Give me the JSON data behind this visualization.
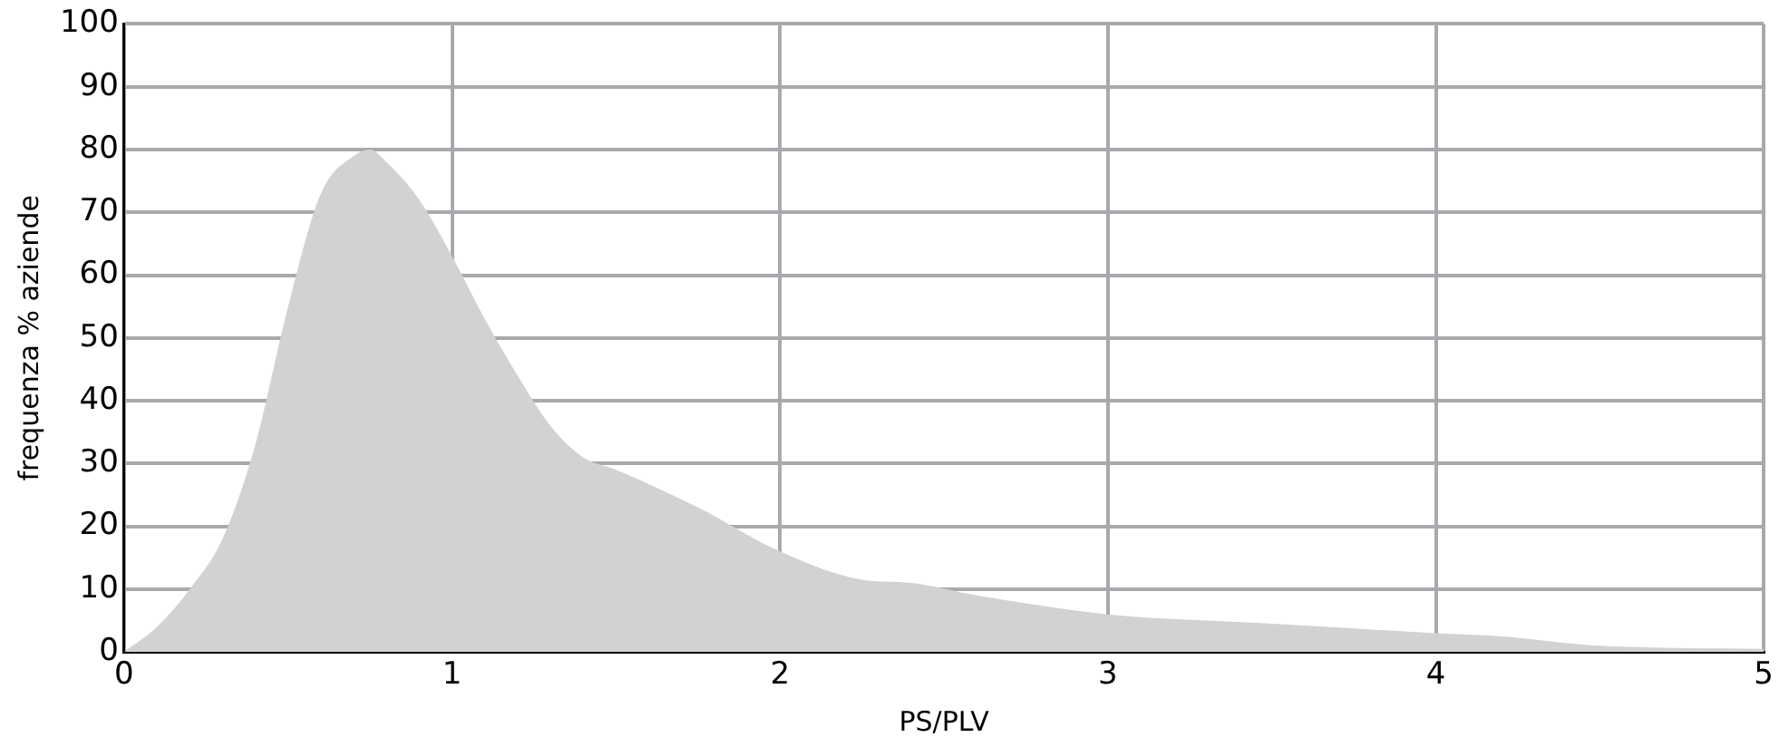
{
  "chart_data": {
    "type": "area",
    "xlabel": "PS/PLV",
    "ylabel": "frequenza % aziende",
    "x": [
      0,
      0.1,
      0.2,
      0.3,
      0.4,
      0.5,
      0.6,
      0.7,
      0.75,
      0.8,
      0.9,
      1.0,
      1.1,
      1.2,
      1.3,
      1.4,
      1.5,
      1.75,
      2.0,
      2.25,
      2.4,
      2.6,
      3.0,
      3.5,
      4.0,
      4.2,
      4.5,
      5.0
    ],
    "series": [
      {
        "color": "#d1d2d4",
        "values": [
          0,
          4,
          10,
          18,
          33,
          55,
          73,
          79,
          80,
          78,
          72,
          63,
          53,
          44,
          36,
          31,
          29,
          23,
          16,
          11.5,
          11,
          9,
          6,
          4.5,
          3,
          2.5,
          1,
          0.5
        ]
      }
    ],
    "xlim": [
      0,
      5
    ],
    "xticks": [
      0,
      1,
      2,
      3,
      4,
      5
    ],
    "ylim": [
      0,
      100
    ],
    "yticks": [
      0,
      10,
      20,
      30,
      40,
      50,
      60,
      70,
      80,
      90,
      100
    ],
    "grid": true,
    "legend": false
  }
}
